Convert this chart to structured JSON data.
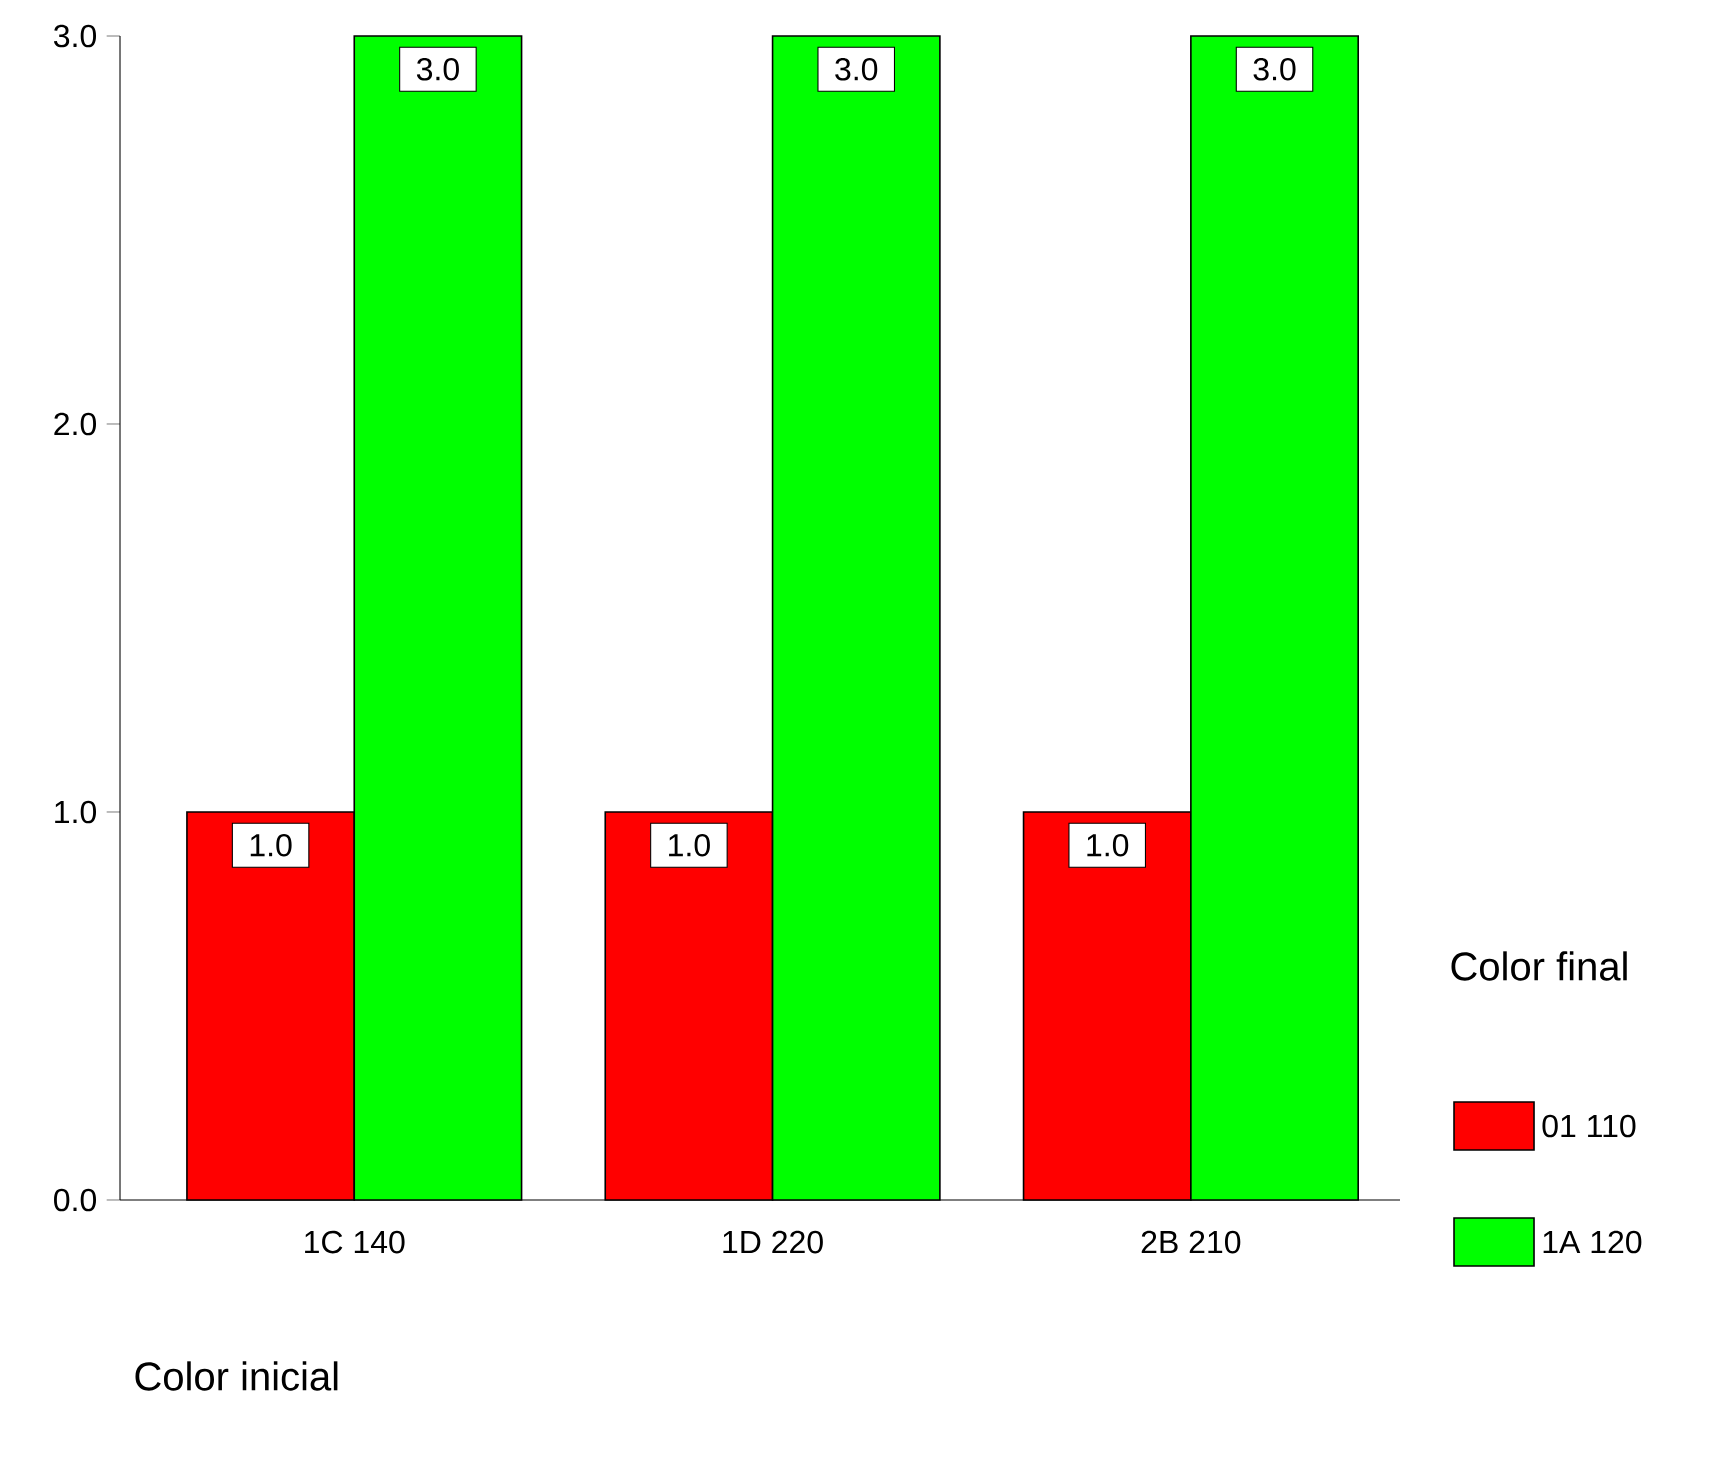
{
  "chart_data": {
    "type": "bar",
    "xlabel": "Color inicial",
    "legend_title": "Color final",
    "legend": "right",
    "categories": [
      "1C 140",
      "1D 220",
      "2B 210"
    ],
    "series": [
      {
        "name": "01 110",
        "color": "#ff0000",
        "values": [
          1,
          1,
          1
        ],
        "value_labels": [
          "1.0",
          "1.0",
          "1.0"
        ]
      },
      {
        "name": "1A 120",
        "color": "#00ff00",
        "values": [
          3,
          3,
          3
        ],
        "value_labels": [
          "3.0",
          "3.0",
          "3.0"
        ]
      }
    ],
    "ylim": [
      0,
      3
    ],
    "yticks": [
      {
        "value": 0,
        "label": "0.0"
      },
      {
        "value": 1,
        "label": "1.0"
      },
      {
        "value": 2,
        "label": "2.0"
      },
      {
        "value": 3,
        "label": "3.0"
      }
    ]
  }
}
